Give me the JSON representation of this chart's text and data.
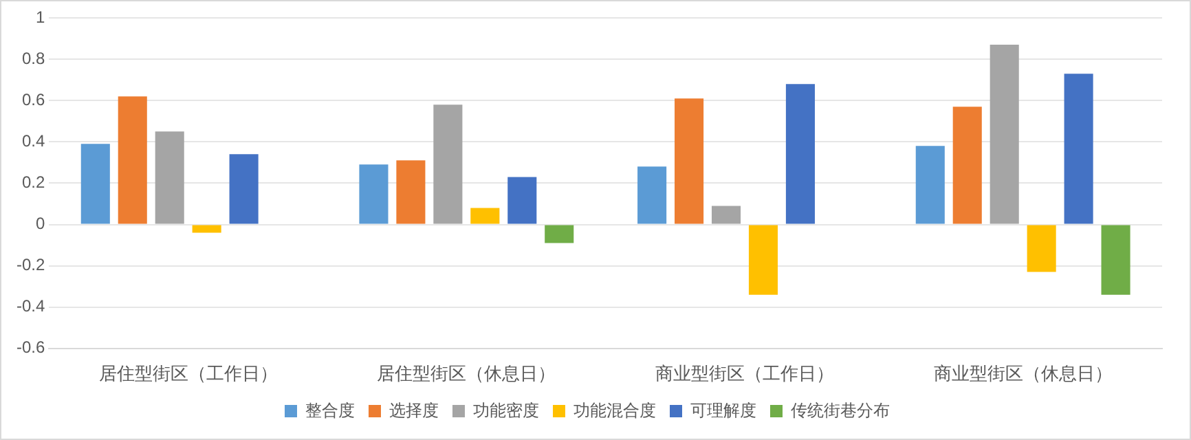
{
  "chart_data": {
    "type": "bar",
    "categories": [
      "居住型街区（工作日）",
      "居住型街区（休息日）",
      "商业型街区（工作日）",
      "商业型街区（休息日）"
    ],
    "series": [
      {
        "name": "整合度",
        "color": "#5b9bd5",
        "values": [
          0.39,
          0.29,
          0.28,
          0.38
        ]
      },
      {
        "name": "选择度",
        "color": "#ed7d31",
        "values": [
          0.62,
          0.31,
          0.61,
          0.57
        ]
      },
      {
        "name": "功能密度",
        "color": "#a5a5a5",
        "values": [
          0.45,
          0.58,
          0.09,
          0.87
        ]
      },
      {
        "name": "功能混合度",
        "color": "#ffc000",
        "values": [
          -0.04,
          0.08,
          -0.34,
          -0.23
        ]
      },
      {
        "name": "可理解度",
        "color": "#4472c4",
        "values": [
          0.34,
          0.23,
          0.68,
          0.73
        ]
      },
      {
        "name": "传统街巷分布",
        "color": "#70ad47",
        "values": [
          null,
          -0.09,
          null,
          -0.34
        ]
      }
    ],
    "ylim": [
      -0.6,
      1
    ],
    "yticks": [
      -0.6,
      -0.4,
      -0.2,
      0,
      0.2,
      0.4,
      0.6,
      0.8,
      1
    ],
    "grid": "y",
    "legend": "bottom"
  }
}
